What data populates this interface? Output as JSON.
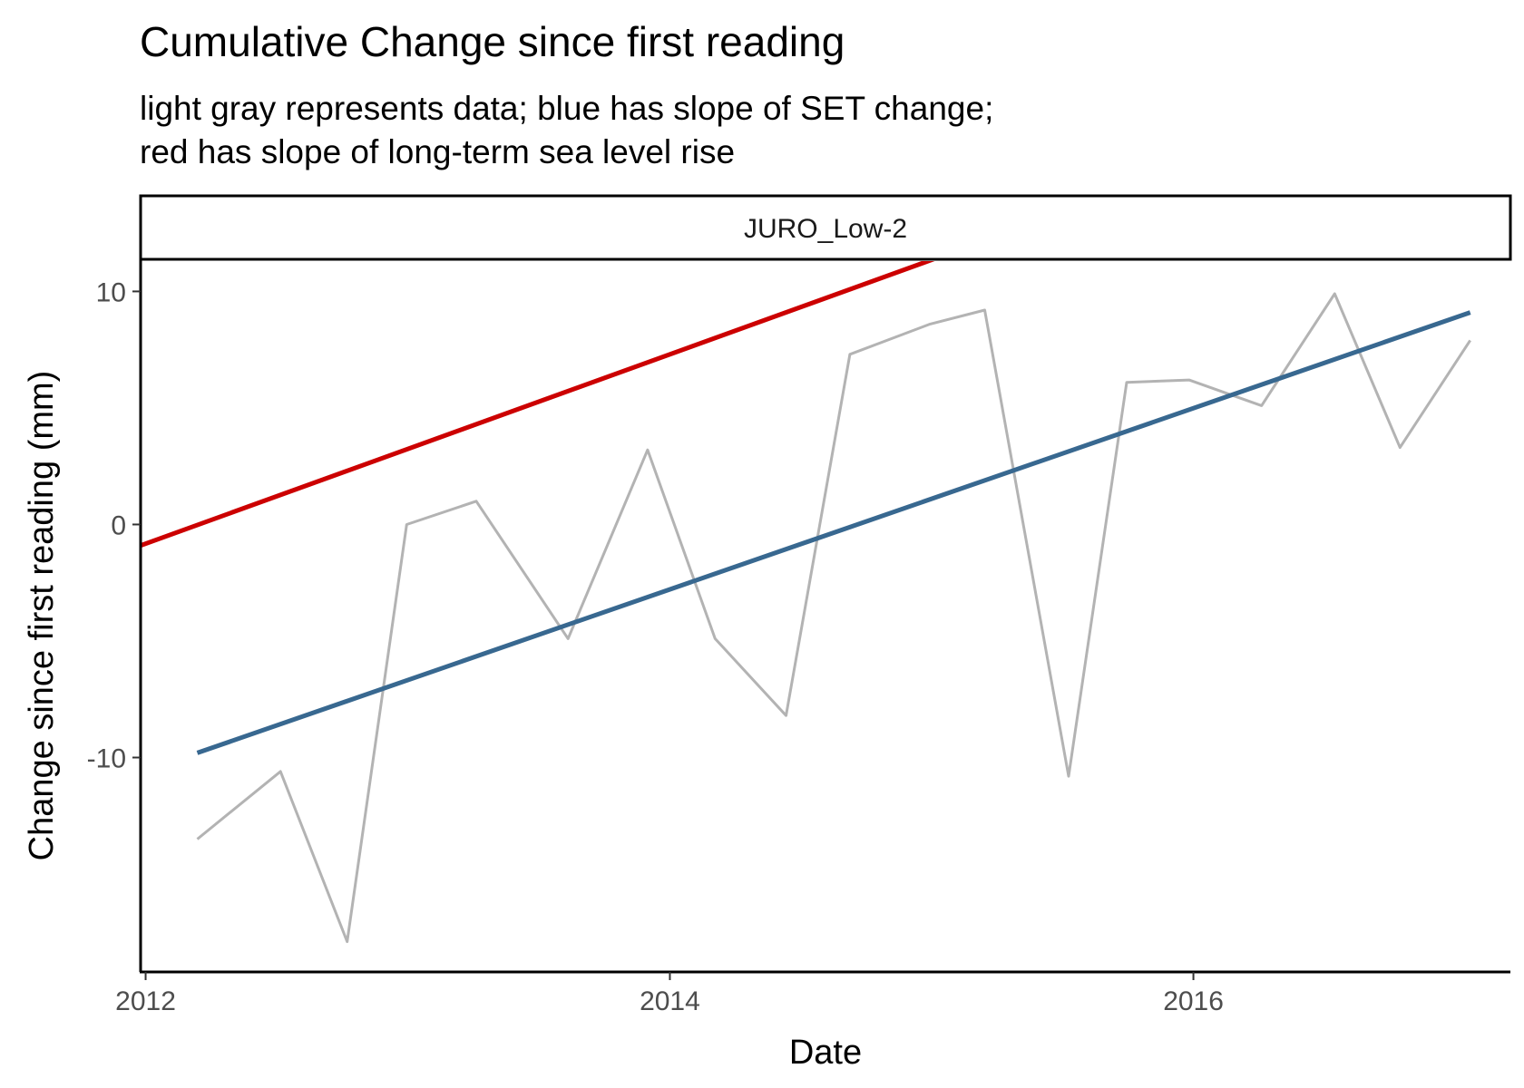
{
  "chart_data": {
    "type": "line",
    "title": "Cumulative Change since first reading",
    "subtitle_lines": [
      "light gray represents data; blue has slope of SET change;",
      "red has slope of long-term sea level rise"
    ],
    "facet_label": "JURO_Low-2",
    "xlabel": "Date",
    "ylabel": "Change since first reading (mm)",
    "x_ticks": [
      {
        "label": "2012",
        "value": "2012-01-01"
      },
      {
        "label": "2014",
        "value": "2014-01-01"
      },
      {
        "label": "2016",
        "value": "2016-01-01"
      }
    ],
    "y_ticks": [
      {
        "label": "-10",
        "value": -10
      },
      {
        "label": "0",
        "value": 0
      },
      {
        "label": "10",
        "value": 10
      }
    ],
    "xlim": [
      "2011-12-25",
      "2017-03-18"
    ],
    "ylim": [
      -19.2,
      11.3
    ],
    "grid": false,
    "series": [
      {
        "color": "#b3b3b3",
        "points": [
          {
            "x": "2012-03-13",
            "y": -13.5
          },
          {
            "x": "2012-07-07",
            "y": -10.6
          },
          {
            "x": "2012-10-08",
            "y": -17.9
          },
          {
            "x": "2012-12-30",
            "y": 0.0
          },
          {
            "x": "2013-04-06",
            "y": 1.0
          },
          {
            "x": "2013-08-12",
            "y": -4.9
          },
          {
            "x": "2013-12-01",
            "y": 3.2
          },
          {
            "x": "2014-03-05",
            "y": -4.9
          },
          {
            "x": "2014-06-12",
            "y": -8.2
          },
          {
            "x": "2014-09-09",
            "y": 7.3
          },
          {
            "x": "2014-12-30",
            "y": 8.6
          },
          {
            "x": "2015-03-16",
            "y": 9.2
          },
          {
            "x": "2015-07-11",
            "y": -10.8
          },
          {
            "x": "2015-09-30",
            "y": 6.1
          },
          {
            "x": "2015-12-26",
            "y": 6.2
          },
          {
            "x": "2016-04-05",
            "y": 5.1
          },
          {
            "x": "2016-07-16",
            "y": 9.9
          },
          {
            "x": "2016-10-15",
            "y": 3.3
          },
          {
            "x": "2017-01-21",
            "y": 7.9
          }
        ]
      },
      {
        "color": "#386890",
        "points": [
          {
            "x": "2012-03-13",
            "y": -9.8
          },
          {
            "x": "2017-01-21",
            "y": 9.1
          }
        ]
      },
      {
        "color": "#cc0000",
        "points": [
          {
            "x": "2011-12-25",
            "y": -0.9
          },
          {
            "x": "2017-01-21",
            "y": 19.7
          }
        ]
      }
    ]
  }
}
